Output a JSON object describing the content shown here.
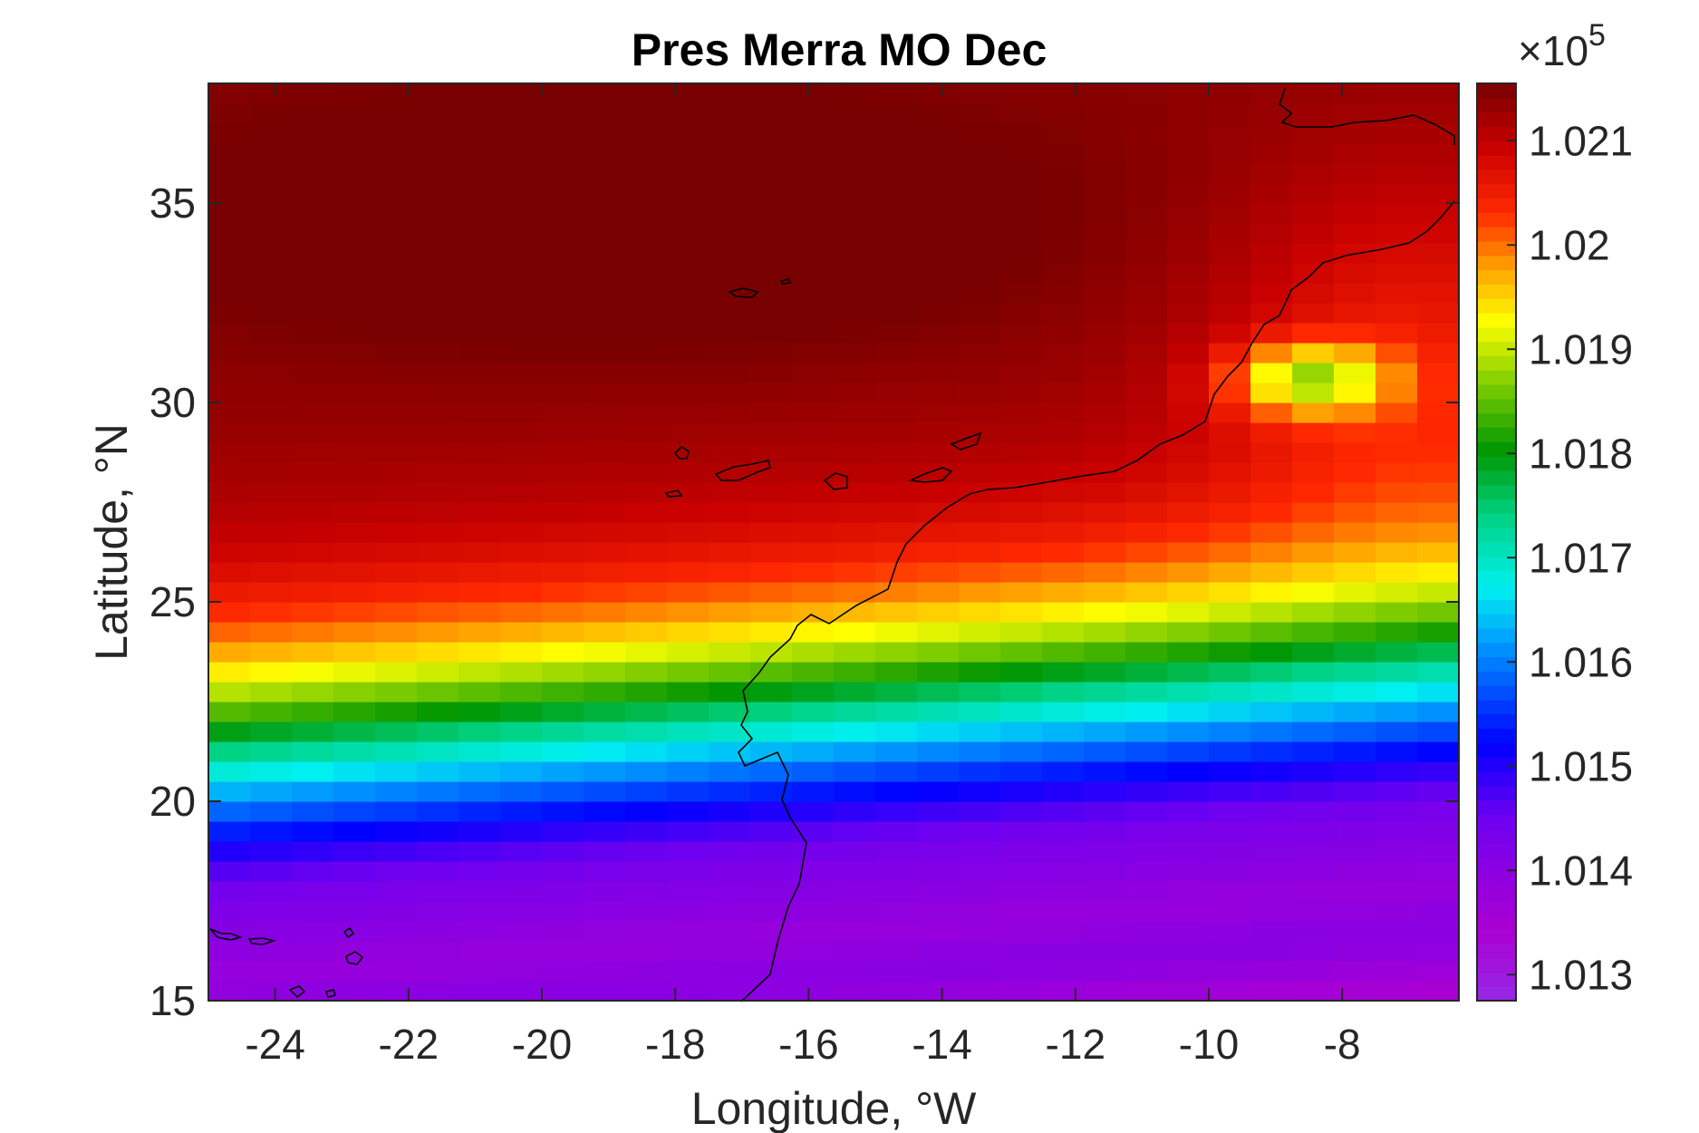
{
  "chart_data": {
    "type": "heatmap",
    "title": "Pres Merra MO Dec",
    "xlabel": "Longitude, °W",
    "ylabel": "Latitude, °N",
    "xlim": [
      -25,
      -6.25
    ],
    "ylim": [
      15,
      38
    ],
    "x_ticks": [
      -24,
      -22,
      -20,
      -18,
      -16,
      -14,
      -12,
      -10,
      -8
    ],
    "x_tick_labels": [
      "-24",
      "-22",
      "-20",
      "-18",
      "-16",
      "-14",
      "-12",
      "-10",
      "-8"
    ],
    "y_ticks": [
      15,
      20,
      25,
      30,
      35
    ],
    "y_tick_labels": [
      "15",
      "20",
      "25",
      "30",
      "35"
    ],
    "grid_resolution": {
      "dx": 0.625,
      "dy": 0.5
    },
    "colorbar": {
      "colormap": "jet-like (purple-blue-cyan-green-yellow-red-dark red)",
      "clim": [
        101275,
        102155
      ],
      "ticks": [
        101300,
        101400,
        101500,
        101600,
        101700,
        101800,
        101900,
        102000,
        102100
      ],
      "tick_labels": [
        "1.013",
        "1.014",
        "1.015",
        "1.016",
        "1.017",
        "1.018",
        "1.019",
        "1.02",
        "1.021"
      ],
      "multiplier": "×10",
      "multiplier_exponent": "5"
    },
    "field_description": {
      "low_pressure_band_lat": 16.5,
      "high_pressure_center": [
        -19,
        34.5
      ],
      "coastal_yellow_pocket": [
        -8.5,
        30.5
      ]
    },
    "overlay": "coastline (Canary Islands, Madeira, NW Africa, Cape Verde)"
  }
}
